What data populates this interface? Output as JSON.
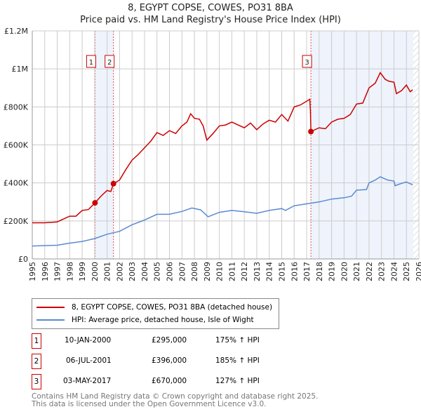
{
  "chart_data": {
    "type": "line",
    "title": "8, EGYPT COPSE, COWES, PO31 8BA",
    "subtitle": "Price paid vs. HM Land Registry's House Price Index (HPI)",
    "xlim": [
      1995,
      2026
    ],
    "ylim": [
      0,
      1200000
    ],
    "x_ticks": [
      "1995",
      "1996",
      "1997",
      "1998",
      "1999",
      "2000",
      "2001",
      "2002",
      "2003",
      "2004",
      "2005",
      "2006",
      "2007",
      "2008",
      "2009",
      "2010",
      "2011",
      "2012",
      "2013",
      "2014",
      "2015",
      "2016",
      "2017",
      "2018",
      "2019",
      "2020",
      "2021",
      "2022",
      "2023",
      "2024",
      "2025",
      "2026"
    ],
    "y_ticks": [
      {
        "v": 0,
        "label": "£0"
      },
      {
        "v": 200000,
        "label": "£200K"
      },
      {
        "v": 400000,
        "label": "£400K"
      },
      {
        "v": 600000,
        "label": "£600K"
      },
      {
        "v": 800000,
        "label": "£800K"
      },
      {
        "v": 1000000,
        "label": "£1M"
      },
      {
        "v": 1200000,
        "label": "£1.2M"
      }
    ],
    "grid": true,
    "series": [
      {
        "name": "8, EGYPT COPSE, COWES, PO31 8BA (detached house)",
        "color": "#cc0000",
        "x": [
          1995,
          1996,
          1997,
          1998,
          1998.5,
          1999,
          1999.5,
          2000.03,
          2000.5,
          2001,
          2001.3,
          2001.51,
          2002,
          2002.5,
          2003,
          2003.5,
          2004,
          2004.5,
          2005,
          2005.5,
          2006,
          2006.5,
          2007,
          2007.4,
          2007.7,
          2008,
          2008.4,
          2008.7,
          2009.0,
          2009.5,
          2010,
          2010.5,
          2011,
          2011.5,
          2012,
          2012.5,
          2013,
          2013.5,
          2014,
          2014.5,
          2015,
          2015.5,
          2016,
          2016.5,
          2017.25,
          2017.3,
          2017.34,
          2018,
          2018.5,
          2019,
          2019.5,
          2020,
          2020.5,
          2021,
          2021.5,
          2022,
          2022.5,
          2022.9,
          2023.3,
          2023.6,
          2024,
          2024.2,
          2024.6,
          2025,
          2025.3,
          2025.5
        ],
        "y": [
          190000,
          190000,
          195000,
          225000,
          225000,
          255000,
          260000,
          295000,
          330000,
          360000,
          355000,
          396000,
          415000,
          470000,
          520000,
          550000,
          585000,
          620000,
          665000,
          650000,
          675000,
          660000,
          700000,
          720000,
          764000,
          740000,
          735000,
          700000,
          625000,
          660000,
          700000,
          705000,
          720000,
          705000,
          690000,
          715000,
          680000,
          710000,
          730000,
          720000,
          760000,
          725000,
          800000,
          810000,
          840000,
          780000,
          670000,
          690000,
          685000,
          720000,
          735000,
          740000,
          760000,
          815000,
          820000,
          900000,
          925000,
          980000,
          945000,
          935000,
          930000,
          870000,
          885000,
          915000,
          880000,
          890000
        ]
      },
      {
        "name": "HPI: Average price, detached house, Isle of Wight",
        "color": "#5b8bd0",
        "x": [
          1995,
          1996,
          1997,
          1998,
          1999,
          2000,
          2001,
          2002,
          2003,
          2004,
          2005,
          2006,
          2007,
          2007.8,
          2008.5,
          2009.1,
          2010,
          2011,
          2012,
          2013,
          2014,
          2015,
          2015.3,
          2016,
          2017,
          2018,
          2019,
          2020,
          2020.6,
          2021,
          2021.8,
          2022,
          2022.5,
          2022.9,
          2023.5,
          2024,
          2024.1,
          2024.5,
          2025,
          2025.5
        ],
        "y": [
          68000,
          70000,
          72000,
          83000,
          92000,
          107000,
          130000,
          145000,
          180000,
          205000,
          235000,
          235000,
          250000,
          268000,
          258000,
          222000,
          245000,
          255000,
          248000,
          240000,
          255000,
          265000,
          255000,
          280000,
          290000,
          300000,
          315000,
          322000,
          330000,
          362000,
          365000,
          400000,
          415000,
          432000,
          415000,
          410000,
          385000,
          395000,
          405000,
          390000
        ]
      }
    ],
    "sales": [
      {
        "n": "1",
        "x": 2000.03,
        "y": 295000,
        "date": "10-JAN-2000",
        "price": "£295,000",
        "hpi": "175% ↑ HPI"
      },
      {
        "n": "2",
        "x": 2001.51,
        "y": 396000,
        "date": "06-JUL-2001",
        "price": "£396,000",
        "hpi": "185% ↑ HPI"
      },
      {
        "n": "3",
        "x": 2017.34,
        "y": 670000,
        "date": "03-MAY-2017",
        "price": "£670,000",
        "hpi": "127% ↑ HPI"
      }
    ],
    "shaded": [
      [
        2000.03,
        2001.51
      ],
      [
        2017.34,
        2025.55
      ]
    ],
    "hatched_from": 2025.55
  },
  "footer": {
    "line1": "Contains HM Land Registry data © Crown copyright and database right 2025.",
    "line2": "This data is licensed under the Open Government Licence v3.0."
  }
}
